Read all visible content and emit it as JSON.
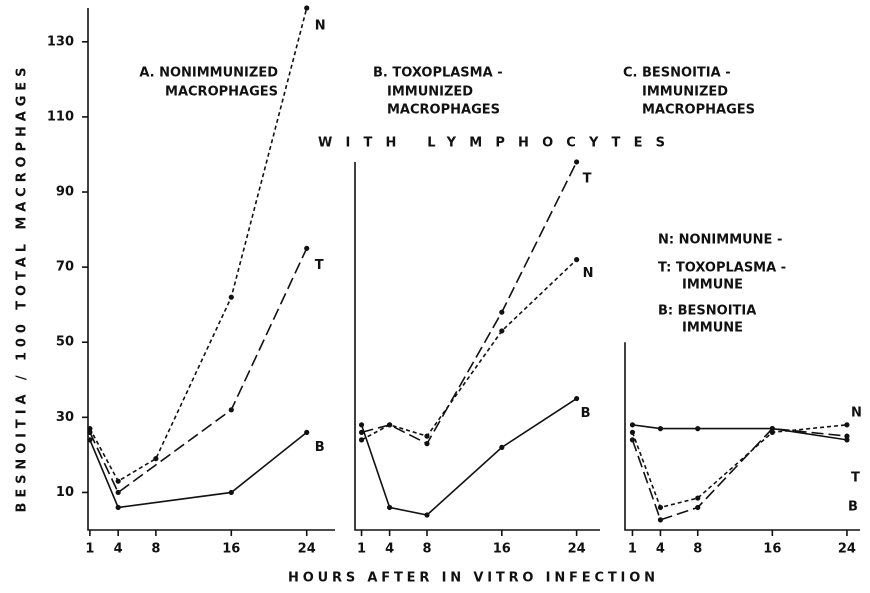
{
  "chart_data": [
    {
      "type": "line",
      "title": [
        "A. NONIMMUNIZED",
        "MACROPHAGES"
      ],
      "y_label": "BESNOITIA / 100 TOTAL MACROPHAGES",
      "xlim": [
        0.8,
        27
      ],
      "ylim": [
        0,
        139
      ],
      "xticks": [
        1,
        4,
        8,
        16,
        24
      ],
      "yticks": [
        10,
        30,
        50,
        70,
        90,
        110,
        130
      ],
      "series": [
        {
          "name": "N",
          "color": "#111111",
          "dash": "4 3",
          "x": [
            1,
            4,
            8,
            16,
            24
          ],
          "values": [
            27,
            13,
            19,
            62,
            139
          ]
        },
        {
          "name": "T",
          "color": "#111111",
          "dash": "12 5",
          "x": [
            1,
            4,
            16,
            24
          ],
          "values": [
            26,
            10,
            32,
            75
          ]
        },
        {
          "name": "B",
          "color": "#111111",
          "dash": "none",
          "x": [
            1,
            4,
            16,
            24
          ],
          "values": [
            24,
            6,
            10,
            26
          ]
        }
      ]
    },
    {
      "type": "line",
      "title": [
        "B. TOXOPLASMA -",
        "IMMUNIZED",
        "MACROPHAGES"
      ],
      "annotation": "WITH LYMPHOCYTES",
      "x_label": "HOURS AFTER IN VITRO INFECTION",
      "xlim": [
        0.3,
        26.5
      ],
      "ylim": [
        0,
        98
      ],
      "xticks": [
        1,
        4,
        8,
        16,
        24
      ],
      "series": [
        {
          "name": "N",
          "color": "#111111",
          "dash": "4 3",
          "x": [
            1,
            4,
            8,
            16,
            24
          ],
          "values": [
            24,
            28,
            25,
            53,
            72
          ]
        },
        {
          "name": "T",
          "color": "#111111",
          "dash": "12 5",
          "x": [
            1,
            4,
            8,
            16,
            24
          ],
          "values": [
            26,
            28,
            23,
            58,
            98
          ]
        },
        {
          "name": "B",
          "color": "#111111",
          "dash": "none",
          "x": [
            1,
            4,
            8,
            16,
            24
          ],
          "values": [
            28,
            6,
            4,
            22,
            35
          ]
        }
      ]
    },
    {
      "type": "line",
      "title": [
        "C. BESNOITIA -",
        "IMMUNIZED",
        "MACROPHAGES"
      ],
      "legend": [
        "N: NONIMMUNE -",
        "T: TOXOPLASMA -",
        "IMMUNE",
        "B: BESNOITIA",
        "IMMUNE"
      ],
      "xlim": [
        0.2,
        25.4
      ],
      "ylim": [
        0,
        50
      ],
      "xticks": [
        1,
        4,
        8,
        16,
        24
      ],
      "series": [
        {
          "name": "N",
          "color": "#111111",
          "dash": "4 3",
          "x": [
            1,
            4,
            8,
            16,
            24
          ],
          "values": [
            26,
            6,
            8.5,
            26,
            28
          ]
        },
        {
          "name": "T",
          "color": "#111111",
          "dash": "12 5",
          "x": [
            1,
            4,
            8,
            16,
            24
          ],
          "values": [
            24,
            2.7,
            6,
            27,
            25
          ]
        },
        {
          "name": "B",
          "color": "#111111",
          "dash": "none",
          "x": [
            1,
            4,
            8,
            16,
            24
          ],
          "values": [
            28,
            27,
            27,
            27,
            24
          ]
        }
      ]
    }
  ]
}
